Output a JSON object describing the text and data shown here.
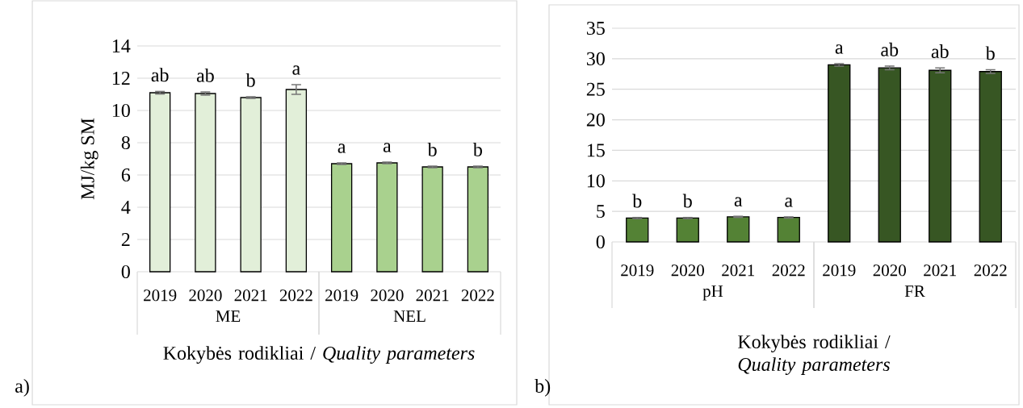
{
  "chart_data": [
    {
      "type": "bar",
      "xlabel": "Kokybės rodikliai / *Quality parameters*",
      "ylabel": "MJ/kg SM",
      "categories": [
        "2019",
        "2020",
        "2021",
        "2022",
        "2019",
        "2020",
        "2021",
        "2022"
      ],
      "series": [
        {
          "name": "ME",
          "color": "#e2efd9",
          "values": [
            11.1,
            11.05,
            10.8,
            11.3,
            null,
            null,
            null,
            null
          ],
          "errors": [
            0.08,
            0.1,
            0.05,
            0.3,
            null,
            null,
            null,
            null
          ],
          "value_labels": [
            "ab",
            "ab",
            "b",
            "a",
            null,
            null,
            null,
            null
          ]
        },
        {
          "name": "NEL",
          "color": "#a9d18e",
          "values": [
            null,
            null,
            null,
            null,
            6.7,
            6.75,
            6.5,
            6.5
          ],
          "errors": [
            null,
            null,
            null,
            null,
            0.05,
            0.05,
            0.05,
            0.05
          ],
          "value_labels": [
            null,
            null,
            null,
            null,
            "a",
            "a",
            "b",
            "b"
          ]
        }
      ],
      "ylim": [
        0,
        14
      ],
      "yticks": [
        0,
        2,
        4,
        6,
        8,
        10,
        12,
        14
      ],
      "grid": "y",
      "annotations": [
        "a)"
      ]
    },
    {
      "type": "bar",
      "xlabel": "Kokybės rodikliai / *Quality parameters*",
      "categories": [
        "2019",
        "2020",
        "2021",
        "2022",
        "2019",
        "2020",
        "2021",
        "2022"
      ],
      "series": [
        {
          "name": "pH",
          "color": "#548235",
          "values": [
            3.9,
            3.9,
            4.1,
            4.0,
            null,
            null,
            null,
            null
          ],
          "errors": [
            0.1,
            0.1,
            0.1,
            0.1,
            null,
            null,
            null,
            null
          ],
          "value_labels": [
            "b",
            "b",
            "a",
            "a",
            null,
            null,
            null,
            null
          ]
        },
        {
          "name": "FR",
          "color": "#375623",
          "values": [
            null,
            null,
            null,
            null,
            29.0,
            28.5,
            28.1,
            27.9
          ],
          "errors": [
            null,
            null,
            null,
            null,
            0.2,
            0.3,
            0.4,
            0.3
          ],
          "value_labels": [
            null,
            null,
            null,
            null,
            "a",
            "ab",
            "ab",
            "b"
          ]
        }
      ],
      "ylim": [
        0,
        35
      ],
      "yticks": [
        0,
        5,
        10,
        15,
        20,
        25,
        30,
        35
      ],
      "grid": "y",
      "annotations": [
        "b)"
      ]
    }
  ]
}
